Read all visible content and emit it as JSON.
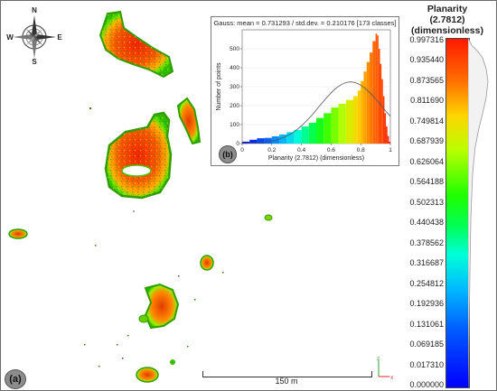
{
  "compass": {
    "n": "N",
    "s": "S",
    "e": "E",
    "w": "W"
  },
  "panel_a_label": "(a)",
  "panel_b_label": "(b)",
  "scale_bar": "150 m",
  "colorbar": {
    "title_line1": "Planarity",
    "title_line2": "(2.7812)",
    "title_line3": "(dimensionless)",
    "ticks": [
      "0.997316",
      "0.935440",
      "0.873565",
      "0.811690",
      "0.749814",
      "0.687939",
      "0.626064",
      "0.564188",
      "0.502313",
      "0.440438",
      "0.378562",
      "0.316687",
      "0.254812",
      "0.192936",
      "0.131061",
      "0.069185",
      "0.017310",
      "0.000000"
    ]
  },
  "chart_data": {
    "type": "bar",
    "title": "Gauss: mean = 0.731293 / std.dev. = 0.210176 [173 classes]",
    "xlabel": "Planarity (2.7812) (dimensionless)",
    "ylabel": "Number of points",
    "xlim": [
      0,
      1
    ],
    "ylim": [
      0,
      600
    ],
    "x_ticks": [
      "0",
      "0.2",
      "0.4",
      "0.6",
      "0.8",
      "1"
    ],
    "y_ticks": [
      "0",
      "100",
      "200",
      "300",
      "400",
      "500"
    ],
    "classes": 173,
    "gauss_mean": 0.731293,
    "gauss_std": 0.210176,
    "gauss_peak": 325,
    "bins": [
      [
        0.0,
        10
      ],
      [
        0.05,
        20
      ],
      [
        0.1,
        28
      ],
      [
        0.15,
        30
      ],
      [
        0.2,
        38
      ],
      [
        0.25,
        48
      ],
      [
        0.3,
        60
      ],
      [
        0.35,
        72
      ],
      [
        0.4,
        90
      ],
      [
        0.45,
        110
      ],
      [
        0.5,
        135
      ],
      [
        0.55,
        160
      ],
      [
        0.6,
        190
      ],
      [
        0.65,
        210
      ],
      [
        0.7,
        230
      ],
      [
        0.75,
        250
      ],
      [
        0.78,
        280
      ],
      [
        0.8,
        330
      ],
      [
        0.82,
        380
      ],
      [
        0.84,
        430
      ],
      [
        0.86,
        480
      ],
      [
        0.88,
        540
      ],
      [
        0.9,
        580
      ],
      [
        0.91,
        570
      ],
      [
        0.92,
        500
      ],
      [
        0.93,
        420
      ],
      [
        0.94,
        340
      ],
      [
        0.95,
        250
      ],
      [
        0.96,
        160
      ],
      [
        0.97,
        90
      ],
      [
        0.98,
        40
      ],
      [
        0.99,
        10
      ]
    ]
  },
  "axis_labels": {
    "z": "Z",
    "x": "X"
  }
}
